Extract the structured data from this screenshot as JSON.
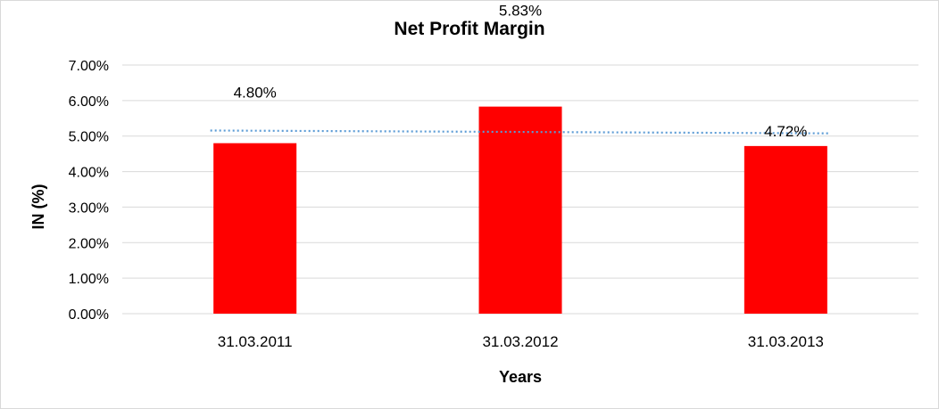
{
  "chart_data": {
    "type": "bar",
    "title": "Net Profit Margin",
    "xlabel": "Years",
    "ylabel": "IN (%)",
    "categories": [
      "31.03.2011",
      "31.03.2012",
      "31.03.2013"
    ],
    "values": [
      4.8,
      5.83,
      4.72
    ],
    "data_labels": [
      "4.80%",
      "5.83%",
      "4.72%"
    ],
    "ylim": [
      0,
      7
    ],
    "y_ticks": [
      "0.00%",
      "1.00%",
      "2.00%",
      "3.00%",
      "4.00%",
      "5.00%",
      "6.00%",
      "7.00%"
    ],
    "trendline": "linear",
    "grid": true,
    "legend": "none",
    "colors": {
      "bar": "#ff0000",
      "trendline": "#5b9bd5",
      "grid": "#d9d9d9"
    }
  }
}
